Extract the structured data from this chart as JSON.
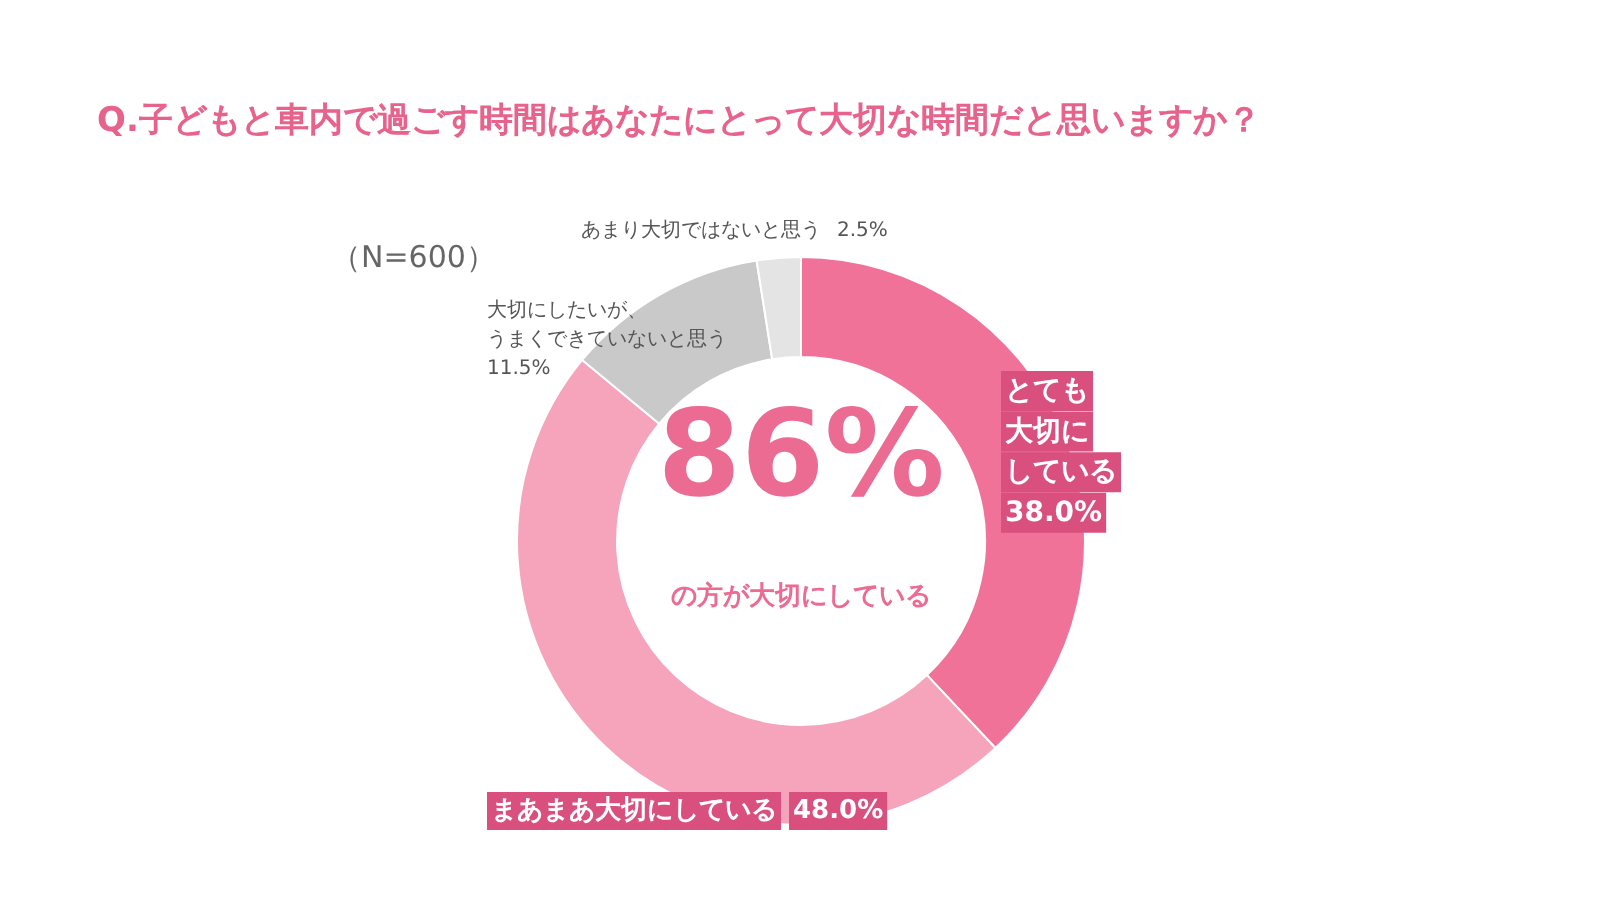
{
  "chart_data": {
    "type": "donut",
    "title": "Q.子どもと車内で過ごす時間はあなたにとって大切な時間だと思いますか？",
    "categories": [
      "とても大切にしている",
      "まあまあ大切にしている",
      "大切にしたいが、うまくできていないと思う",
      "あまり大切ではないと思う"
    ],
    "values": [
      38.0,
      48.0,
      11.5,
      2.5
    ],
    "value_labels": [
      "38.0%",
      "48.0%",
      "11.5%",
      "2.5%"
    ],
    "colors": [
      "#f07298",
      "#f5a4bc",
      "#c9c9c9",
      "#e4e4e4"
    ],
    "annotations": [
      "（N=600）",
      "86%",
      "の方が大切にしている"
    ]
  }
}
